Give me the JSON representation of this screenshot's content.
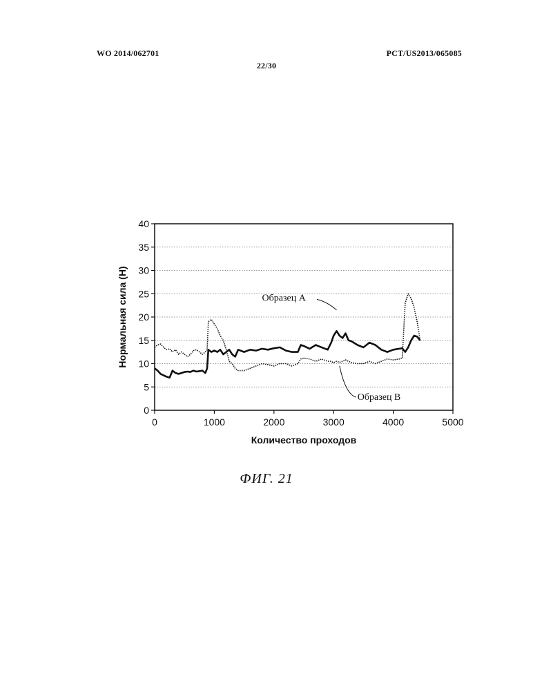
{
  "header": {
    "left": "WO 2014/062701",
    "right": "PCT/US2013/065085",
    "page": "22/30"
  },
  "figure_caption": "ФИГ. 21",
  "chart_data": {
    "type": "line",
    "xlabel": "Количество проходов",
    "ylabel": "Нормальная сила (Н)",
    "xlim": [
      0,
      5000
    ],
    "ylim": [
      0,
      40
    ],
    "x_ticks": [
      0,
      1000,
      2000,
      3000,
      4000,
      5000
    ],
    "y_ticks": [
      0,
      5,
      10,
      15,
      20,
      25,
      30,
      35,
      40
    ],
    "grid": "horizontal dotted",
    "annotations": [
      {
        "text": "Образец A",
        "points_to_series": "Образец A"
      },
      {
        "text": "Образец B",
        "points_to_series": "Образец B"
      }
    ],
    "series": [
      {
        "name": "Образец A",
        "style": "solid",
        "x": [
          0,
          50,
          100,
          150,
          200,
          250,
          300,
          350,
          400,
          450,
          500,
          550,
          600,
          650,
          700,
          750,
          800,
          850,
          880,
          900,
          950,
          1000,
          1050,
          1100,
          1150,
          1200,
          1250,
          1300,
          1350,
          1400,
          1500,
          1600,
          1700,
          1800,
          1900,
          2000,
          2100,
          2200,
          2300,
          2400,
          2450,
          2500,
          2600,
          2700,
          2800,
          2900,
          2960,
          3000,
          3050,
          3100,
          3150,
          3200,
          3250,
          3300,
          3400,
          3500,
          3600,
          3700,
          3800,
          3900,
          4000,
          4100,
          4150,
          4200,
          4250,
          4300,
          4350,
          4400,
          4450
        ],
        "y": [
          9,
          8.5,
          7.8,
          7.5,
          7.2,
          7,
          8.5,
          8,
          7.8,
          8,
          8.2,
          8.3,
          8.2,
          8.5,
          8.3,
          8.4,
          8.5,
          8,
          9,
          13,
          12.5,
          12.8,
          12.5,
          13,
          12,
          12.5,
          13,
          12,
          11.5,
          13,
          12.5,
          13,
          12.8,
          13.2,
          13,
          13.3,
          13.5,
          12.8,
          12.5,
          12.5,
          14,
          13.8,
          13.2,
          14,
          13.5,
          13,
          14.5,
          16,
          17,
          16,
          15.5,
          16.5,
          15,
          14.8,
          14,
          13.5,
          14.5,
          14,
          13,
          12.5,
          13,
          13.2,
          13.3,
          12.5,
          13.5,
          15,
          16,
          15.8,
          15
        ]
      },
      {
        "name": "Образец B",
        "style": "dotted",
        "x": [
          0,
          50,
          100,
          150,
          200,
          250,
          300,
          350,
          400,
          450,
          500,
          550,
          600,
          650,
          700,
          750,
          800,
          850,
          880,
          900,
          950,
          1000,
          1050,
          1100,
          1150,
          1200,
          1250,
          1300,
          1350,
          1400,
          1500,
          1600,
          1700,
          1800,
          1900,
          2000,
          2100,
          2200,
          2300,
          2400,
          2450,
          2500,
          2600,
          2700,
          2800,
          2900,
          2960,
          3000,
          3050,
          3100,
          3150,
          3200,
          3250,
          3300,
          3400,
          3500,
          3600,
          3700,
          3800,
          3900,
          4000,
          4100,
          4150,
          4200,
          4250,
          4300,
          4350,
          4400,
          4450
        ],
        "y": [
          13.5,
          14,
          14.2,
          13.5,
          13,
          13.2,
          12.5,
          13,
          12,
          12.5,
          12,
          11.5,
          12,
          12.8,
          13,
          12.5,
          12,
          12.5,
          13,
          19,
          19.5,
          18.5,
          17.5,
          16,
          15,
          13,
          10.5,
          10,
          9,
          8.5,
          8.5,
          9,
          9.5,
          10,
          9.8,
          9.5,
          10,
          10,
          9.5,
          10,
          11,
          11.2,
          11,
          10.5,
          11,
          10.5,
          10.5,
          10.2,
          10.5,
          10.3,
          10.5,
          10.8,
          10.5,
          10.2,
          10,
          10,
          10.5,
          10,
          10.5,
          11,
          10.8,
          11,
          11.2,
          23,
          25,
          24,
          22,
          19,
          15
        ]
      }
    ]
  }
}
